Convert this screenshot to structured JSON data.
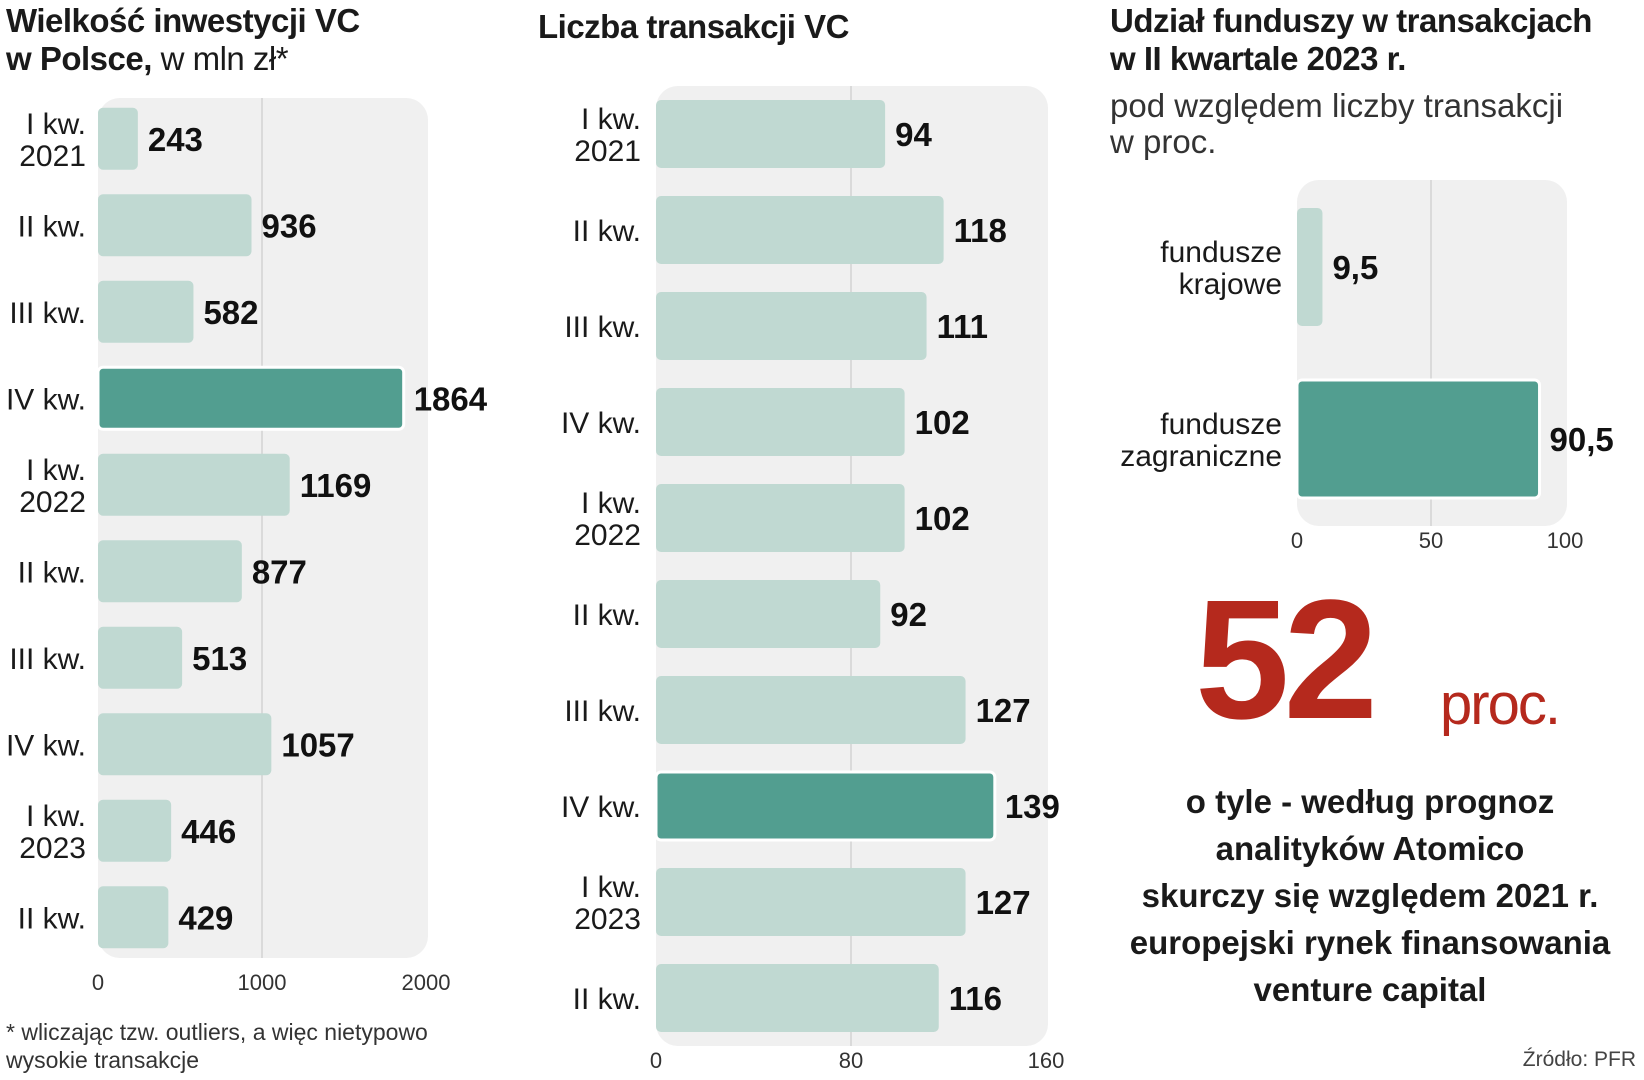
{
  "charts": {
    "investment": {
      "title_bold": "Wielkość inwestycji VC",
      "title_bold2": "w Polsce,",
      "title_light": " w mln zł*"
    },
    "transactions": {
      "title": "Liczba transakcji VC"
    },
    "share": {
      "title_line1": "Udział funduszy w transakcjach",
      "title_line2": "w II kwartale 2023 r.",
      "subtitle_line1": "pod względem liczby transakcji",
      "subtitle_line2": "w proc."
    }
  },
  "chart_data": [
    {
      "type": "bar",
      "orientation": "horizontal",
      "title": "Wielkość inwestycji VC w Polsce, w mln zł*",
      "categories": [
        [
          "I kw.",
          "2021"
        ],
        [
          "II kw."
        ],
        [
          "III kw."
        ],
        [
          "IV kw."
        ],
        [
          "I kw.",
          "2022"
        ],
        [
          "II kw."
        ],
        [
          "III kw."
        ],
        [
          "IV kw."
        ],
        [
          "I kw.",
          "2023"
        ],
        [
          "II kw."
        ]
      ],
      "values": [
        243,
        936,
        582,
        1864,
        1169,
        877,
        513,
        1057,
        446,
        429
      ],
      "value_labels": [
        "243",
        "936",
        "582",
        "1864",
        "1169",
        "877",
        "513",
        "1057",
        "446",
        "429"
      ],
      "highlight_index": 3,
      "xlim": [
        0,
        2000
      ],
      "xticks": [
        "0",
        "1000",
        "2000"
      ],
      "grid": true
    },
    {
      "type": "bar",
      "orientation": "horizontal",
      "title": "Liczba transakcji VC",
      "categories": [
        [
          "I kw.",
          "2021"
        ],
        [
          "II kw."
        ],
        [
          "III kw."
        ],
        [
          "IV kw."
        ],
        [
          "I kw.",
          "2022"
        ],
        [
          "II kw."
        ],
        [
          "III kw."
        ],
        [
          "IV kw."
        ],
        [
          "I kw.",
          "2023"
        ],
        [
          "II kw."
        ]
      ],
      "values": [
        94,
        118,
        111,
        102,
        102,
        92,
        127,
        139,
        127,
        116
      ],
      "value_labels": [
        "94",
        "118",
        "111",
        "102",
        "102",
        "92",
        "127",
        "139",
        "127",
        "116"
      ],
      "highlight_index": 7,
      "xlim": [
        0,
        160
      ],
      "xticks": [
        "0",
        "80",
        "160"
      ],
      "grid": true
    },
    {
      "type": "bar",
      "orientation": "horizontal",
      "title": "Udział funduszy w transakcjach w II kwartale 2023 r.",
      "categories": [
        [
          "fundusze",
          "krajowe"
        ],
        [
          "fundusze",
          "zagraniczne"
        ]
      ],
      "values": [
        9.5,
        90.5
      ],
      "value_labels": [
        "9,5",
        "90,5"
      ],
      "highlight_index": 1,
      "xlim": [
        0,
        100
      ],
      "xticks": [
        "0",
        "50",
        "100"
      ],
      "grid": true
    }
  ],
  "highlight": {
    "number": "52",
    "unit": "proc.",
    "caption": [
      "o tyle - według prognoz",
      "analityków Atomico",
      "skurczy się względem 2021 r.",
      "europejski rynek finansowania",
      "venture capital"
    ]
  },
  "footnote": [
    "* wliczając tzw. outliers, a więc nietypowo",
    "wysokie transakcje"
  ],
  "source": "Źródło: PFR",
  "colors": {
    "bar": "#c0d9d2",
    "bar_highlight": "#529e90",
    "panel": "#f0f0f0",
    "grid": "#d2d2d2",
    "accent_red": "#b5291d"
  }
}
